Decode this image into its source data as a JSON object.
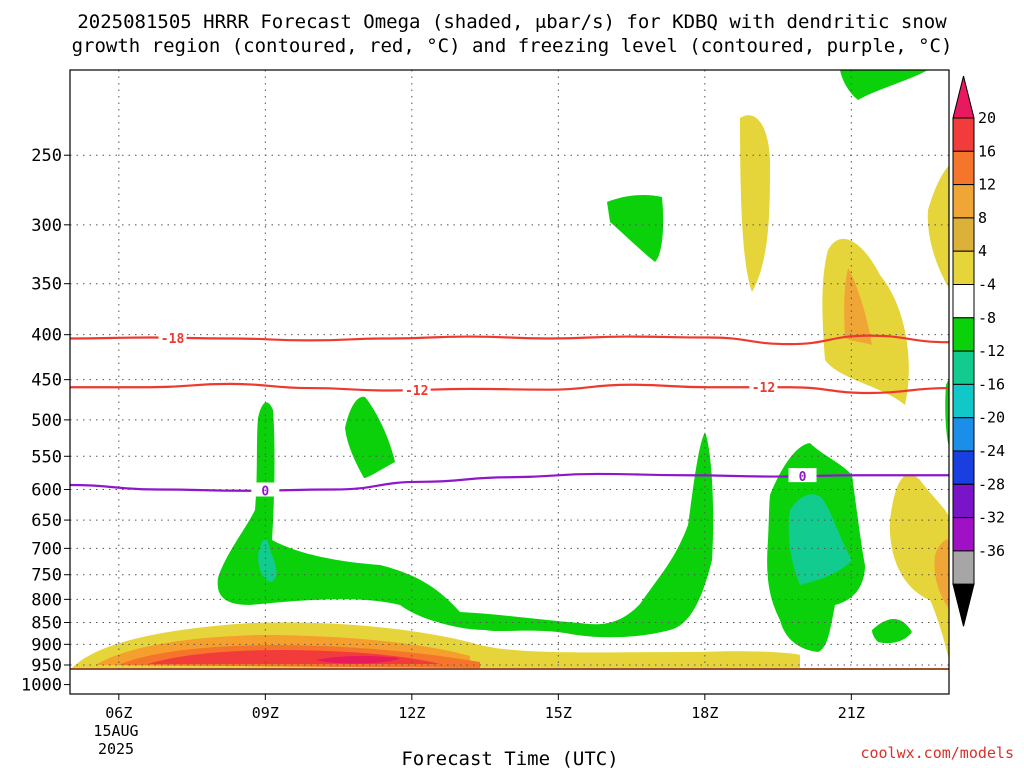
{
  "title_line1": "2025081505 HRRR Forecast Omega (shaded, μbar/s) for KDBQ with dendritic snow",
  "title_line2": "growth region (contoured, red, °C) and freezing level (contoured, purple, °C)",
  "xlabel": "Forecast Time (UTC)",
  "credit": "coolwx.com/models",
  "date_label": [
    "15AUG",
    "2025"
  ],
  "chart_data": {
    "type": "heatmap",
    "x_ticks": [
      "06Z",
      "09Z",
      "12Z",
      "15Z",
      "18Z",
      "21Z"
    ],
    "x_hours": [
      6,
      9,
      12,
      15,
      18,
      21
    ],
    "xlim": [
      5,
      23
    ],
    "y_ticks": [
      250,
      300,
      350,
      400,
      450,
      500,
      550,
      600,
      650,
      700,
      750,
      800,
      850,
      900,
      950,
      1000
    ],
    "ylim": [
      200,
      1025
    ],
    "y_scale": "log",
    "y_reversed": true,
    "grid": true,
    "colorbar": {
      "labels": [
        "20",
        "16",
        "12",
        "8",
        "4",
        "-4",
        "-8",
        "-12",
        "-16",
        "-20",
        "-24",
        "-28",
        "-32",
        "-36"
      ],
      "colors": [
        "#e8195e",
        "#f23c3c",
        "#f5762b",
        "#f0a636",
        "#dcb13a",
        "#e6d53a",
        "#ffffff",
        "#0bd10b",
        "#12cc8f",
        "#12c7c7",
        "#1a8ee8",
        "#1a3fe0",
        "#7a14c9",
        "#a010c4",
        "#a6a6a6",
        "#000000"
      ]
    },
    "isotherms": [
      {
        "label": "-18",
        "color": "#ee3a2e",
        "pressure_hpa": [
          404,
          403,
          404,
          406,
          404,
          402,
          404,
          402,
          403,
          410,
          401,
          408
        ]
      },
      {
        "label": "-12",
        "color": "#ee3a2e",
        "pressure_hpa": [
          459,
          459,
          455,
          460,
          463,
          461,
          462,
          456,
          459,
          459,
          466,
          460
        ]
      },
      {
        "label": "0",
        "color": "#8e17c9",
        "pressure_hpa": [
          593,
          600,
          602,
          600,
          588,
          581,
          576,
          578,
          580,
          578,
          578
        ]
      }
    ]
  }
}
